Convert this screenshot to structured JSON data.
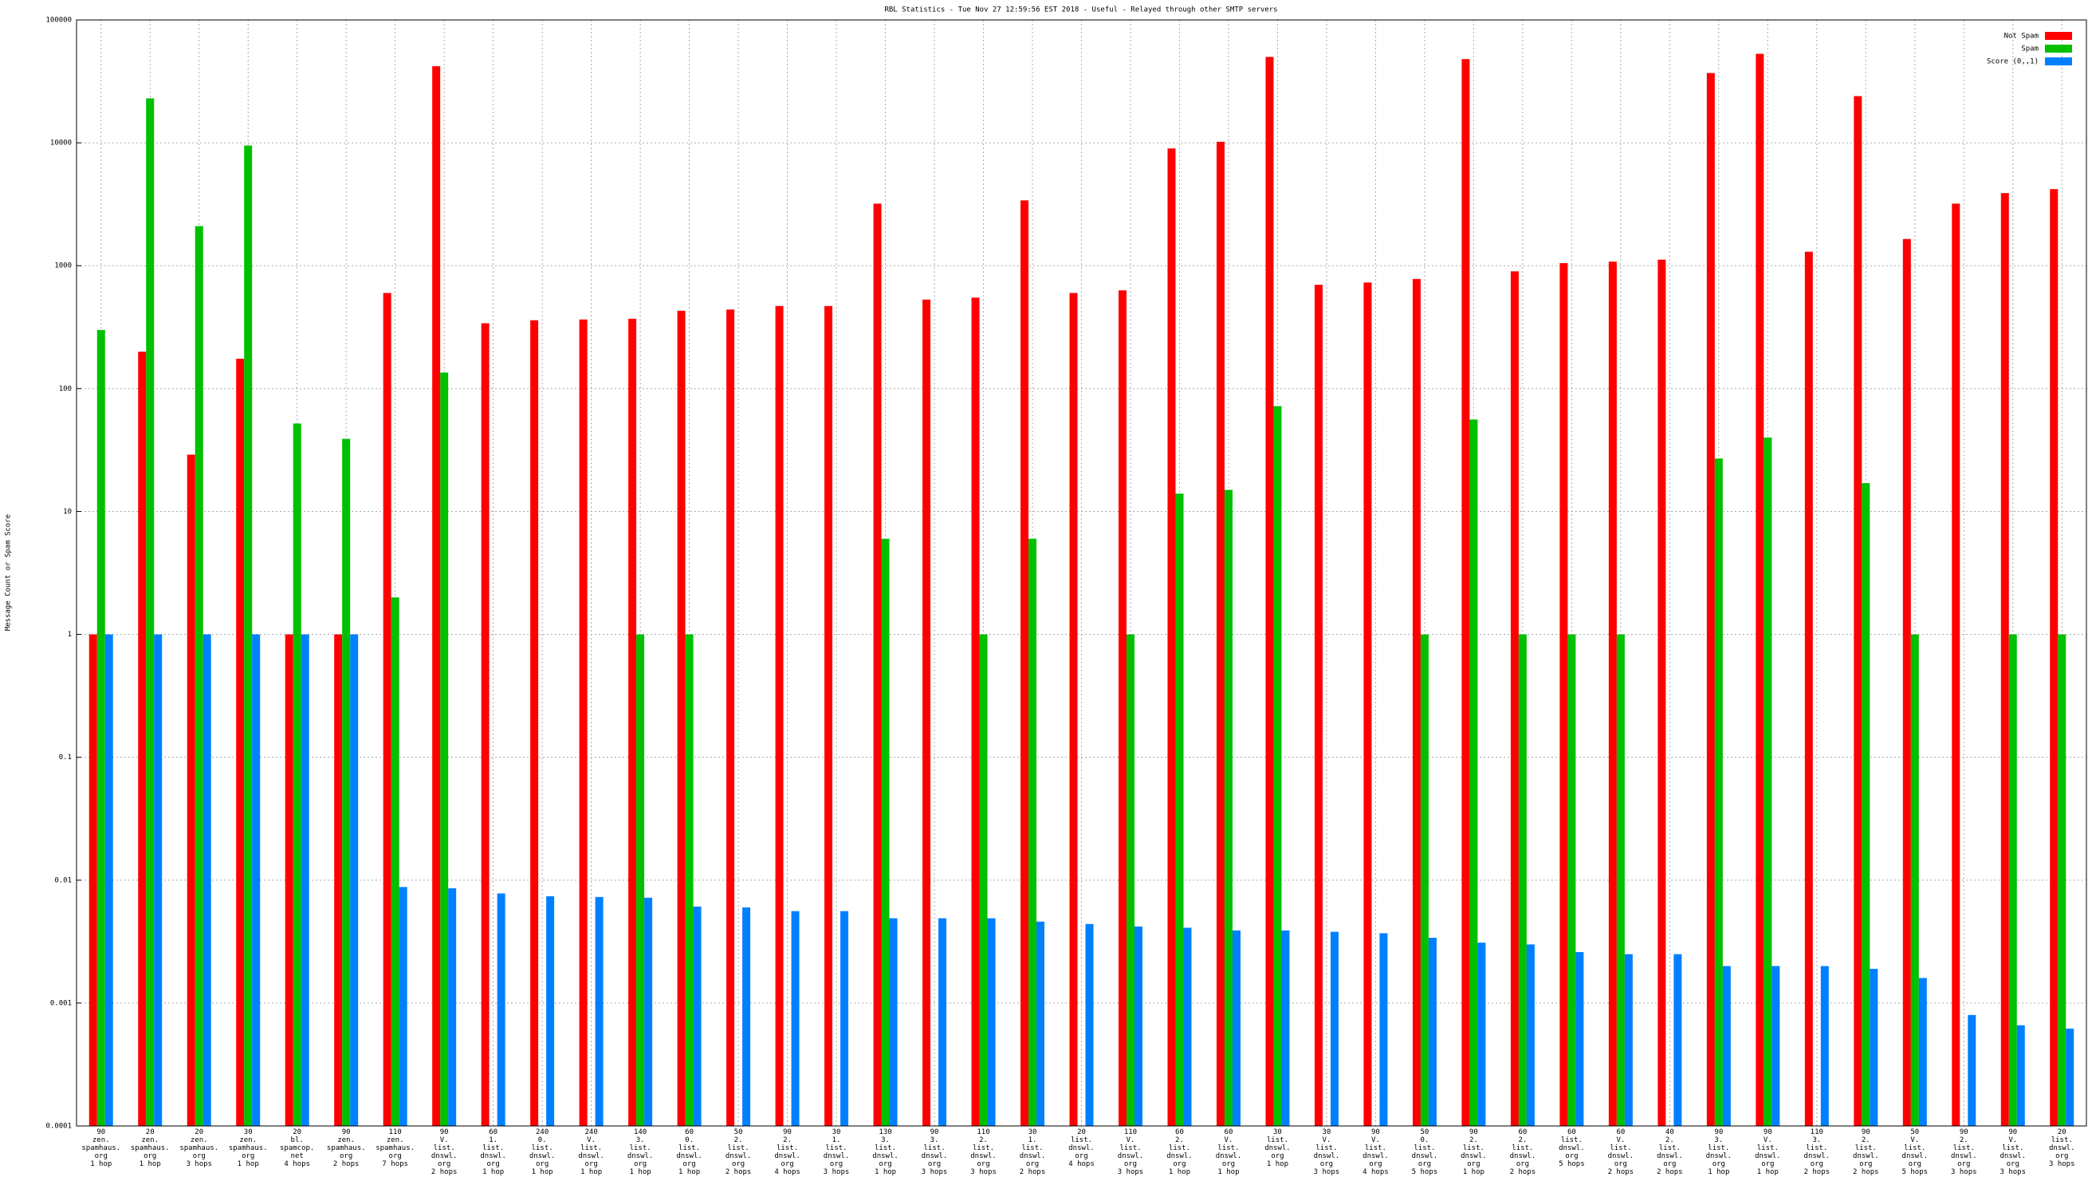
{
  "chart_data": {
    "type": "bar",
    "title": "RBL Statistics - Tue Nov 27 12:59:56 EST 2018 - Useful - Relayed through other SMTP servers",
    "y_label": "Message Count or Spam Score",
    "log_scale": true,
    "grid": true,
    "legend_position": "top-right",
    "ylim": [
      0.0001,
      100000
    ],
    "yticks": [
      0.0001,
      0.001,
      0.01,
      0.1,
      1,
      10,
      100,
      1000,
      10000,
      100000
    ],
    "categories": [
      [
        "90",
        "zen.",
        "spamhaus.",
        "org",
        "1 hop"
      ],
      [
        "20",
        "zen.",
        "spamhaus.",
        "org",
        "1 hop"
      ],
      [
        "20",
        "zen.",
        "spamhaus.",
        "org",
        "3 hops"
      ],
      [
        "30",
        "zen.",
        "spamhaus.",
        "org",
        "1 hop"
      ],
      [
        "20",
        "bl.",
        "spamcop.",
        "net",
        "4 hops"
      ],
      [
        "90",
        "zen.",
        "spamhaus.",
        "org",
        "2 hops"
      ],
      [
        "110",
        "zen.",
        "spamhaus.",
        "org",
        "7 hops"
      ],
      [
        "90",
        "V.",
        "list.",
        "dnswl.",
        "org",
        "2 hops"
      ],
      [
        "60",
        "1.",
        "list.",
        "dnswl.",
        "org",
        "1 hop"
      ],
      [
        "240",
        "0.",
        "list.",
        "dnswl.",
        "org",
        "1 hop"
      ],
      [
        "240",
        "V.",
        "list.",
        "dnswl.",
        "org",
        "1 hop"
      ],
      [
        "140",
        "3.",
        "list.",
        "dnswl.",
        "org",
        "1 hop"
      ],
      [
        "60",
        "0.",
        "list.",
        "dnswl.",
        "org",
        "1 hop"
      ],
      [
        "50",
        "2.",
        "list.",
        "dnswl.",
        "org",
        "2 hops"
      ],
      [
        "90",
        "2.",
        "list.",
        "dnswl.",
        "org",
        "4 hops"
      ],
      [
        "30",
        "1.",
        "list.",
        "dnswl.",
        "org",
        "3 hops"
      ],
      [
        "130",
        "3.",
        "list.",
        "dnswl.",
        "org",
        "1 hop"
      ],
      [
        "90",
        "3.",
        "list.",
        "dnswl.",
        "org",
        "3 hops"
      ],
      [
        "110",
        "2.",
        "list.",
        "dnswl.",
        "org",
        "3 hops"
      ],
      [
        "30",
        "1.",
        "list.",
        "dnswl.",
        "org",
        "2 hops"
      ],
      [
        "20",
        "list.",
        "dnswl.",
        "org",
        "4 hops"
      ],
      [
        "110",
        "V.",
        "list.",
        "dnswl.",
        "org",
        "3 hops"
      ],
      [
        "60",
        "2.",
        "list.",
        "dnswl.",
        "org",
        "1 hop"
      ],
      [
        "60",
        "V.",
        "list.",
        "dnswl.",
        "org",
        "1 hop"
      ],
      [
        "30",
        "list.",
        "dnswl.",
        "org",
        "1 hop"
      ],
      [
        "30",
        "V.",
        "list.",
        "dnswl.",
        "org",
        "3 hops"
      ],
      [
        "90",
        "V.",
        "list.",
        "dnswl.",
        "org",
        "4 hops"
      ],
      [
        "50",
        "0.",
        "list.",
        "dnswl.",
        "org",
        "5 hops"
      ],
      [
        "90",
        "2.",
        "list.",
        "dnswl.",
        "org",
        "1 hop"
      ],
      [
        "60",
        "2.",
        "list.",
        "dnswl.",
        "org",
        "2 hops"
      ],
      [
        "60",
        "list.",
        "dnswl.",
        "org",
        "5 hops"
      ],
      [
        "60",
        "V.",
        "list.",
        "dnswl.",
        "org",
        "2 hops"
      ],
      [
        "40",
        "2.",
        "list.",
        "dnswl.",
        "org",
        "2 hops"
      ],
      [
        "90",
        "3.",
        "list.",
        "dnswl.",
        "org",
        "1 hop"
      ],
      [
        "90",
        "V.",
        "list.",
        "dnswl.",
        "org",
        "1 hop"
      ],
      [
        "110",
        "3.",
        "list.",
        "dnswl.",
        "org",
        "2 hops"
      ],
      [
        "90",
        "2.",
        "list.",
        "dnswl.",
        "org",
        "2 hops"
      ],
      [
        "50",
        "V.",
        "list.",
        "dnswl.",
        "org",
        "5 hops"
      ],
      [
        "90",
        "2.",
        "list.",
        "dnswl.",
        "org",
        "3 hops"
      ],
      [
        "90",
        "V.",
        "list.",
        "dnswl.",
        "org",
        "3 hops"
      ],
      [
        "20",
        "list.",
        "dnswl.",
        "org",
        "3 hops"
      ]
    ],
    "series": [
      {
        "name": "Not Spam",
        "color": "#ff0000",
        "values": [
          1,
          200,
          29,
          175,
          1,
          1,
          600,
          42000,
          340,
          360,
          365,
          370,
          430,
          440,
          470,
          470,
          3200,
          530,
          550,
          3400,
          600,
          630,
          9000,
          10200,
          50000,
          700,
          730,
          780,
          48000,
          900,
          1050,
          1080,
          1120,
          37000,
          53000,
          1300,
          24000,
          1650,
          3200,
          3900,
          4200
        ]
      },
      {
        "name": "Spam",
        "color": "#00c000",
        "values": [
          300,
          23000,
          2100,
          9500,
          52,
          39,
          2,
          135,
          null,
          null,
          null,
          1,
          1,
          null,
          null,
          null,
          6,
          null,
          1,
          6,
          null,
          1,
          14,
          15,
          72,
          null,
          null,
          1,
          56,
          1,
          1,
          1,
          null,
          27,
          40,
          null,
          17,
          1,
          null,
          1,
          1
        ]
      },
      {
        "name": "Score (0,,1)",
        "color": "#0080ff",
        "values": [
          1,
          1,
          1,
          1,
          1,
          1,
          0.0088,
          0.0086,
          0.0078,
          0.0074,
          0.0073,
          0.0072,
          0.0061,
          0.006,
          0.0056,
          0.0056,
          0.0049,
          0.0049,
          0.0049,
          0.0046,
          0.0044,
          0.0042,
          0.0041,
          0.0039,
          0.0039,
          0.0038,
          0.0037,
          0.0034,
          0.0031,
          0.003,
          0.0026,
          0.0025,
          0.0025,
          0.002,
          0.002,
          0.002,
          0.0019,
          0.0016,
          0.0008,
          0.00066,
          0.00062
        ]
      }
    ]
  }
}
